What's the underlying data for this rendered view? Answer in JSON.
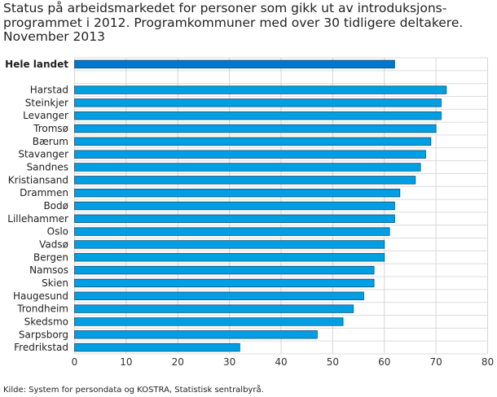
{
  "chart_data": {
    "type": "bar",
    "orientation": "horizontal",
    "title": "Status på arbeidsmarkedet for personer som gikk ut av introduksjons-programmet i 2012. Programkommuner med over 30 tidligere deltakere. November 2013",
    "title_lines": [
      "Status på arbeidsmarkedet for personer som gikk ut av introduksjons-",
      "programmet i 2012. Programkommuner med over 30 tidligere deltakere.",
      "November 2013"
    ],
    "highlight": {
      "category": "Hele landet",
      "value": 62,
      "color": "#0077cc"
    },
    "categories": [
      "Harstad",
      "Steinkjer",
      "Levanger",
      "Tromsø",
      "Bærum",
      "Stavanger",
      "Sandnes",
      "Kristiansand",
      "Drammen",
      "Bodø",
      "Lillehammer",
      "Oslo",
      "Vadsø",
      "Bergen",
      "Namsos",
      "Skien",
      "Haugesund",
      "Trondheim",
      "Skedsmo",
      "Sarpsborg",
      "Fredrikstad"
    ],
    "values": [
      72,
      71,
      71,
      70,
      69,
      68,
      67,
      66,
      63,
      62,
      62,
      61,
      60,
      60,
      58,
      58,
      56,
      54,
      52,
      47,
      32
    ],
    "bar_color": "#009fe3",
    "xlim": [
      0,
      80
    ],
    "xticks": [
      "0",
      "10",
      "20",
      "30",
      "40",
      "50",
      "60",
      "70",
      "80"
    ],
    "grid": true,
    "xlabel": "",
    "ylabel": ""
  },
  "source": "Kilde: System for persondata og KOSTRA, Statistisk sentralbyrå."
}
